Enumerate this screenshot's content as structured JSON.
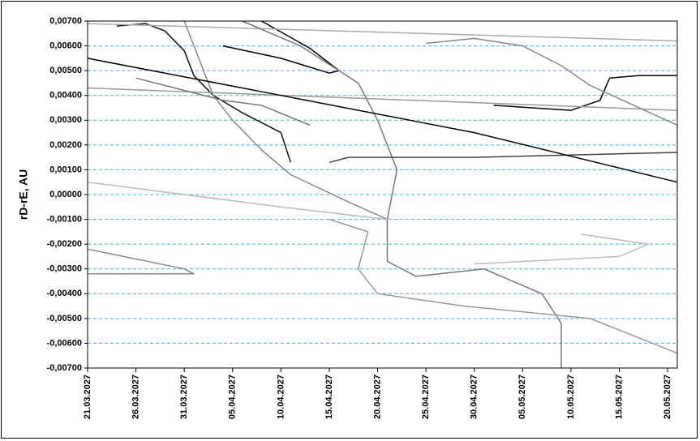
{
  "chart_data": {
    "type": "line",
    "y_label": "rD-rE, AU",
    "xlim": [
      "21.03.2027",
      "21.05.2027"
    ],
    "xticks": [
      "21.03.2027",
      "26.03.2027",
      "31.03.2027",
      "05.04.2027",
      "10.04.2027",
      "15.04.2027",
      "20.04.2027",
      "25.04.2027",
      "30.04.2027",
      "05.05.2027",
      "10.05.2027",
      "15.05.2027",
      "20.05.2027"
    ],
    "ylim": [
      -0.007,
      0.007
    ],
    "yticks": [
      {
        "value": 0.007,
        "label": "0,00700"
      },
      {
        "value": 0.006,
        "label": "0,00600"
      },
      {
        "value": 0.005,
        "label": "0,00500"
      },
      {
        "value": 0.004,
        "label": "0,00400"
      },
      {
        "value": 0.003,
        "label": "0,00300"
      },
      {
        "value": 0.002,
        "label": "0,00200"
      },
      {
        "value": 0.001,
        "label": "0,00100"
      },
      {
        "value": 0,
        "label": "0,00000"
      },
      {
        "value": -0.001,
        "label": "-0,00100"
      },
      {
        "value": -0.002,
        "label": "-0,00200"
      },
      {
        "value": -0.003,
        "label": "-0,00300"
      },
      {
        "value": -0.004,
        "label": "-0,00400"
      },
      {
        "value": -0.005,
        "label": "-0,00500"
      },
      {
        "value": -0.006,
        "label": "-0,00600"
      },
      {
        "value": -0.007,
        "label": "-0,00700"
      }
    ],
    "grid": true,
    "grid_color": "#33bbcc",
    "series": [
      {
        "color": "#000000",
        "x": [
          "08.04.2027",
          "13.04.2027",
          "16.04.2027",
          "15.04.2027",
          "10.04.2027",
          "04.04.2027"
        ],
        "values": [
          0.007,
          0.0059,
          0.005,
          0.0049,
          0.0055,
          0.006
        ]
      },
      {
        "color": "#111111",
        "x": [
          "24.03.2027",
          "27.03.2027",
          "29.03.2027",
          "31.03.2027",
          "01.04.2027",
          "03.04.2027",
          "06.04.2027",
          "08.04.2027",
          "10.04.2027",
          "11.04.2027"
        ],
        "values": [
          0.0068,
          0.0069,
          0.0066,
          0.0058,
          0.0048,
          0.004,
          0.0033,
          0.0029,
          0.0025,
          0.0013
        ]
      },
      {
        "color": "#000000",
        "x": [
          "02.05.2027",
          "10.05.2027",
          "13.05.2027",
          "14.05.2027",
          "17.05.2027",
          "21.05.2027"
        ],
        "values": [
          0.0036,
          0.0034,
          0.0038,
          0.0047,
          0.0048,
          0.0048
        ]
      },
      {
        "color": "#aaaaaa",
        "x": [
          "21.03.2027",
          "21.05.2027"
        ],
        "values": [
          0.0069,
          0.0062
        ]
      },
      {
        "color": "#999999",
        "x": [
          "21.03.2027",
          "21.05.2027"
        ],
        "values": [
          0.0043,
          0.0034
        ]
      },
      {
        "color": "#777777",
        "x": [
          "26.03.2027",
          "04.04.2027",
          "08.04.2027",
          "13.04.2027"
        ],
        "values": [
          0.0047,
          0.0038,
          0.0036,
          0.0028
        ]
      },
      {
        "color": "#888888",
        "x": [
          "31.03.2027",
          "02.04.2027",
          "03.04.2027",
          "05.04.2027",
          "08.04.2027",
          "11.04.2027",
          "17.04.2027",
          "21.04.2027"
        ],
        "values": [
          0.007,
          0.005,
          0.004,
          0.003,
          0.0018,
          0.0008,
          -0.0003,
          -0.001
        ]
      },
      {
        "color": "#777777",
        "x": [
          "06.04.2027",
          "12.04.2027",
          "18.04.2027",
          "20.04.2027",
          "22.04.2027",
          "21.04.2027",
          "21.04.2027",
          "24.04.2027",
          "01.05.2027",
          "07.05.2027",
          "09.05.2027",
          "09.05.2027"
        ],
        "values": [
          0.007,
          0.006,
          0.0045,
          0.003,
          0.001,
          -0.001,
          -0.0027,
          -0.0033,
          -0.003,
          -0.004,
          -0.0052,
          -0.007
        ]
      },
      {
        "color": "#888888",
        "x": [
          "25.04.2027",
          "30.04.2027",
          "05.05.2027",
          "09.05.2027",
          "12.05.2027",
          "21.05.2027"
        ],
        "values": [
          0.0061,
          0.0063,
          0.006,
          0.0052,
          0.0044,
          0.0028
        ]
      },
      {
        "color": "#444444",
        "x": [
          "15.04.2027",
          "17.04.2027",
          "30.04.2027",
          "21.05.2027"
        ],
        "values": [
          0.0013,
          0.0015,
          0.0015,
          0.0017
        ]
      },
      {
        "color": "#999999",
        "x": [
          "15.04.2027",
          "19.04.2027",
          "18.04.2027",
          "20.04.2027",
          "29.04.2027",
          "12.05.2027",
          "21.05.2027"
        ],
        "values": [
          -0.001,
          -0.0015,
          -0.003,
          -0.004,
          -0.0045,
          -0.005,
          -0.0064
        ]
      },
      {
        "color": "#bbbbbb",
        "x": [
          "21.03.2027",
          "10.04.2027",
          "21.04.2027"
        ],
        "values": [
          0.0005,
          -0.0005,
          -0.001
        ]
      },
      {
        "color": "#888888",
        "x": [
          "21.03.2027",
          "31.03.2027",
          "01.04.2027",
          "21.03.2027"
        ],
        "values": [
          -0.0022,
          -0.003,
          -0.0032,
          -0.0032
        ]
      },
      {
        "color": "#000000",
        "x": [
          "21.03.2027",
          "10.04.2027",
          "30.04.2027",
          "21.05.2027"
        ],
        "values": [
          0.0055,
          0.004,
          0.0025,
          0.0005
        ]
      },
      {
        "color": "#bbbbbb",
        "x": [
          "11.05.2027",
          "18.05.2027",
          "15.05.2027",
          "30.04.2027"
        ],
        "values": [
          -0.0016,
          -0.002,
          -0.0025,
          -0.0028
        ]
      }
    ]
  }
}
